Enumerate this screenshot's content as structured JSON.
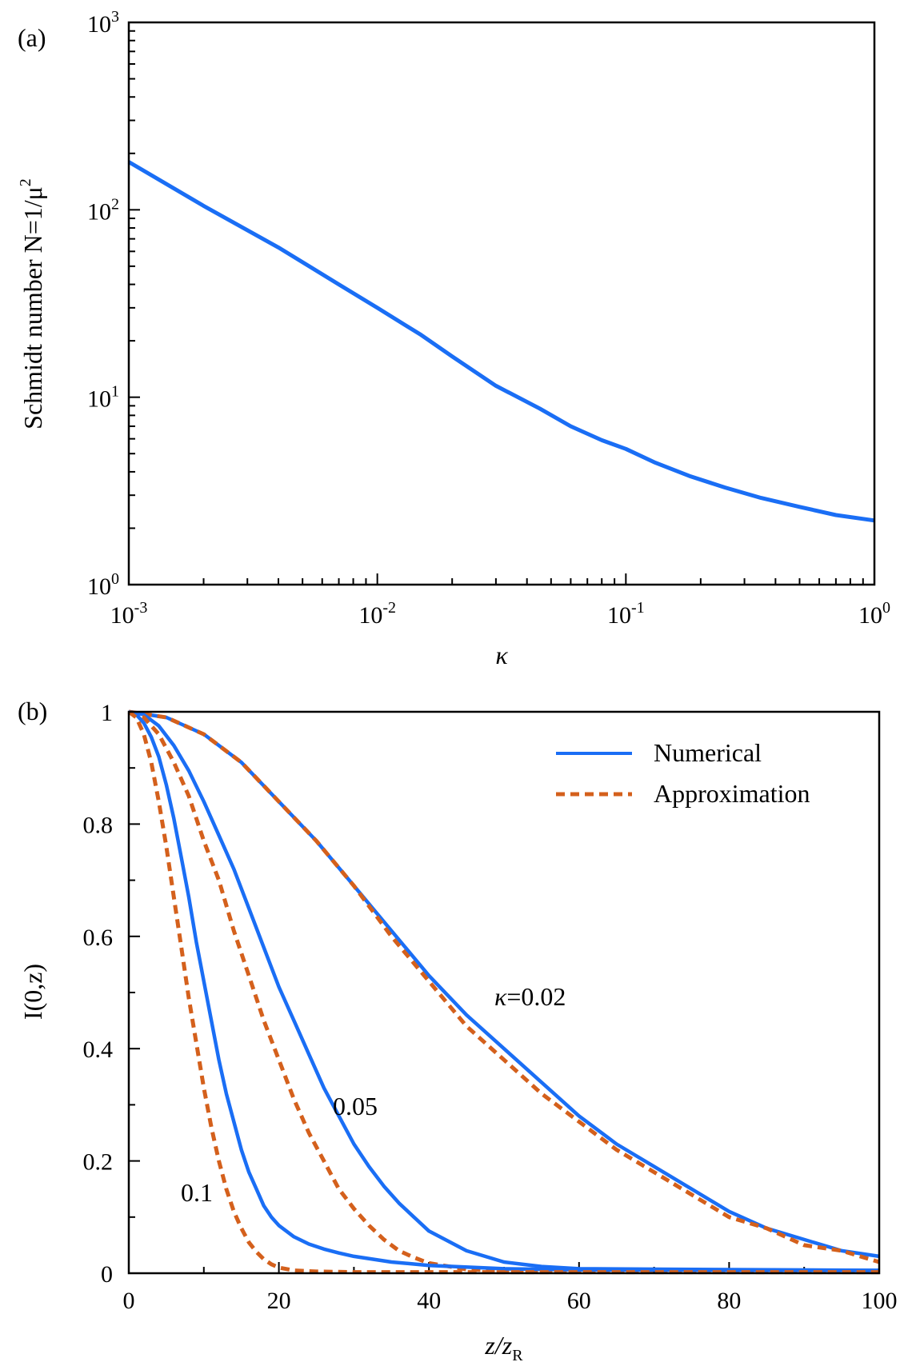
{
  "figure": {
    "panels": [
      "(a)",
      "(b)"
    ]
  },
  "chart_data": [
    {
      "type": "line",
      "scale": "log-log",
      "panel_label": "(a)",
      "xlabel": "κ",
      "ylabel": "Schmidt number N=1/μ",
      "ylabel_sup": "2",
      "xlim": [
        0.001,
        1
      ],
      "ylim": [
        1,
        1000
      ],
      "x_ticks": [
        {
          "value": 0.001,
          "base": "10",
          "exp": "-3"
        },
        {
          "value": 0.01,
          "base": "10",
          "exp": "-2"
        },
        {
          "value": 0.1,
          "base": "10",
          "exp": "-1"
        },
        {
          "value": 1,
          "base": "10",
          "exp": "0"
        }
      ],
      "y_ticks": [
        {
          "value": 1,
          "base": "10",
          "exp": "0"
        },
        {
          "value": 10,
          "base": "10",
          "exp": "1"
        },
        {
          "value": 100,
          "base": "10",
          "exp": "2"
        },
        {
          "value": 1000,
          "base": "10",
          "exp": "3"
        }
      ],
      "series": [
        {
          "name": "Schmidt number",
          "color": "#1a6ef5",
          "style": "solid",
          "x": [
            0.001,
            0.002,
            0.004,
            0.007,
            0.01,
            0.015,
            0.02,
            0.03,
            0.045,
            0.06,
            0.08,
            0.1,
            0.13,
            0.18,
            0.25,
            0.35,
            0.5,
            0.7,
            1.0
          ],
          "y": [
            180,
            105,
            63,
            40,
            30,
            21.5,
            16.5,
            11.5,
            8.7,
            7.0,
            5.9,
            5.3,
            4.5,
            3.8,
            3.3,
            2.9,
            2.6,
            2.35,
            2.2
          ]
        }
      ]
    },
    {
      "type": "line",
      "panel_label": "(b)",
      "xlabel": "z/z",
      "xlabel_sub": "R",
      "ylabel": "I(0,z)",
      "xlim": [
        0,
        100
      ],
      "ylim": [
        0,
        1
      ],
      "x_ticks": [
        "0",
        "20",
        "40",
        "60",
        "80",
        "100"
      ],
      "y_ticks": [
        "0",
        "0.2",
        "0.4",
        "0.6",
        "0.8",
        "1"
      ],
      "legend": {
        "position": "top-right",
        "entries": [
          {
            "label": "Numerical",
            "color": "#1a6ef5",
            "style": "solid"
          },
          {
            "label": "Approximation",
            "color": "#d4601c",
            "style": "dashed"
          }
        ]
      },
      "annotations": [
        {
          "text": "κ=0.02",
          "near": "kappa-0.02 curves"
        },
        {
          "text": "0.05",
          "near": "kappa-0.05 curves"
        },
        {
          "text": "0.1",
          "near": "kappa-0.1 curves"
        }
      ],
      "series": [
        {
          "name": "Numerical κ=0.02",
          "color": "#1a6ef5",
          "style": "solid",
          "x": [
            0,
            5,
            10,
            15,
            20,
            25,
            30,
            35,
            40,
            45,
            50,
            55,
            60,
            65,
            70,
            75,
            80,
            85,
            90,
            95,
            100
          ],
          "y": [
            1.0,
            0.99,
            0.96,
            0.91,
            0.84,
            0.77,
            0.69,
            0.61,
            0.53,
            0.46,
            0.4,
            0.34,
            0.28,
            0.23,
            0.19,
            0.15,
            0.11,
            0.08,
            0.06,
            0.04,
            0.03
          ]
        },
        {
          "name": "Approximation κ=0.02",
          "color": "#d4601c",
          "style": "dashed",
          "x": [
            0,
            5,
            10,
            15,
            20,
            25,
            30,
            35,
            40,
            45,
            50,
            55,
            60,
            65,
            70,
            75,
            80,
            85,
            90,
            95,
            100
          ],
          "y": [
            1.0,
            0.99,
            0.96,
            0.91,
            0.84,
            0.77,
            0.69,
            0.6,
            0.52,
            0.44,
            0.38,
            0.32,
            0.27,
            0.22,
            0.18,
            0.14,
            0.1,
            0.08,
            0.05,
            0.04,
            0.02
          ]
        },
        {
          "name": "Numerical κ=0.05",
          "color": "#1a6ef5",
          "style": "solid",
          "x": [
            0,
            2,
            4,
            6,
            8,
            10,
            12,
            14,
            16,
            18,
            20,
            22,
            24,
            26,
            28,
            30,
            32,
            34,
            36,
            38,
            40,
            45,
            50,
            55,
            60,
            100
          ],
          "y": [
            1.0,
            0.995,
            0.975,
            0.94,
            0.895,
            0.84,
            0.78,
            0.72,
            0.65,
            0.58,
            0.51,
            0.45,
            0.39,
            0.33,
            0.28,
            0.23,
            0.19,
            0.155,
            0.125,
            0.1,
            0.075,
            0.04,
            0.02,
            0.012,
            0.008,
            0.005
          ]
        },
        {
          "name": "Approximation κ=0.05",
          "color": "#d4601c",
          "style": "dashed",
          "x": [
            0,
            2,
            4,
            6,
            8,
            10,
            12,
            14,
            16,
            18,
            20,
            22,
            24,
            26,
            28,
            30,
            32,
            34,
            36,
            38,
            40,
            45,
            50,
            60,
            100
          ],
          "y": [
            1.0,
            0.99,
            0.96,
            0.91,
            0.85,
            0.77,
            0.7,
            0.61,
            0.53,
            0.45,
            0.38,
            0.31,
            0.25,
            0.2,
            0.15,
            0.115,
            0.085,
            0.06,
            0.04,
            0.028,
            0.018,
            0.007,
            0.004,
            0.003,
            0.003
          ]
        },
        {
          "name": "Numerical κ=0.1",
          "color": "#1a6ef5",
          "style": "solid",
          "x": [
            0,
            1,
            2,
            3,
            4,
            5,
            6,
            7,
            8,
            9,
            10,
            11,
            12,
            13,
            14,
            15,
            16,
            17,
            18,
            19,
            20,
            22,
            24,
            26,
            28,
            30,
            35,
            40,
            50,
            60,
            100
          ],
          "y": [
            1.0,
            0.995,
            0.98,
            0.955,
            0.92,
            0.87,
            0.81,
            0.74,
            0.67,
            0.59,
            0.52,
            0.45,
            0.38,
            0.32,
            0.27,
            0.22,
            0.18,
            0.15,
            0.12,
            0.1,
            0.085,
            0.065,
            0.052,
            0.043,
            0.036,
            0.03,
            0.02,
            0.014,
            0.008,
            0.006,
            0.005
          ]
        },
        {
          "name": "Approximation κ=0.1",
          "color": "#d4601c",
          "style": "dashed",
          "x": [
            0,
            1,
            2,
            3,
            4,
            5,
            6,
            7,
            8,
            9,
            10,
            11,
            12,
            13,
            14,
            15,
            16,
            17,
            18,
            19,
            20,
            22,
            25,
            30,
            100
          ],
          "y": [
            1.0,
            0.99,
            0.96,
            0.91,
            0.84,
            0.76,
            0.67,
            0.58,
            0.49,
            0.41,
            0.33,
            0.26,
            0.2,
            0.15,
            0.11,
            0.08,
            0.055,
            0.038,
            0.025,
            0.016,
            0.01,
            0.005,
            0.003,
            0.002,
            0.002
          ]
        }
      ]
    }
  ]
}
